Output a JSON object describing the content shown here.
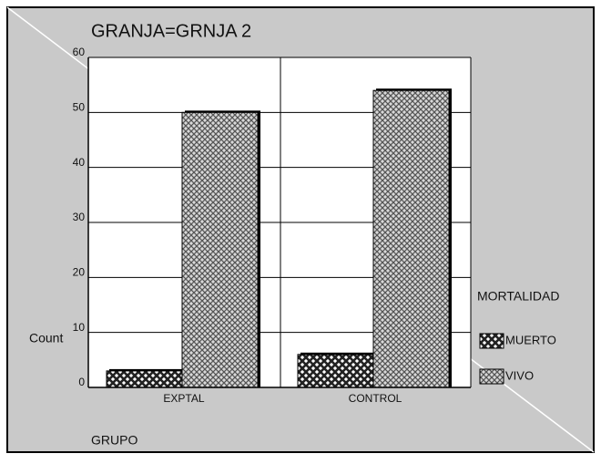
{
  "chart_data": {
    "type": "bar",
    "title": "GRANJA=GRNJA 2",
    "x_label": "GRUPO",
    "y_label": "Count",
    "legend_title": "MORTALIDAD",
    "categories": [
      "EXPTAL",
      "CONTROL"
    ],
    "series": [
      {
        "name": "MUERTO",
        "color": "#222222",
        "values": [
          3,
          6
        ]
      },
      {
        "name": "VIVO",
        "color": "#555555",
        "values": [
          50,
          54
        ]
      }
    ],
    "ylim": [
      0,
      60
    ],
    "yticks": [
      0,
      10,
      20,
      30,
      40,
      50,
      60
    ],
    "grid": true
  }
}
